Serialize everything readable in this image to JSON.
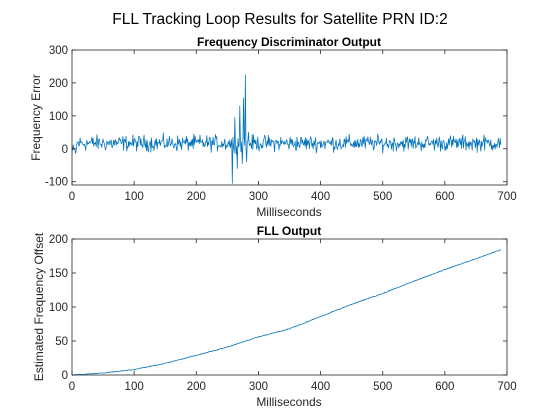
{
  "figure_title": "FLL Tracking Loop Results for Satellite PRN ID:2",
  "colors": {
    "series": "#0072bd",
    "axes": "#262626"
  },
  "chart_data": [
    {
      "type": "line",
      "title": "Frequency Discriminator Output",
      "xlabel": "Milliseconds",
      "ylabel": "Frequency Error",
      "xlim": [
        0,
        700
      ],
      "ylim": [
        -110,
        300
      ],
      "xticks": [
        "0",
        "100",
        "200",
        "300",
        "400",
        "500",
        "600",
        "700"
      ],
      "yticks": [
        "-100",
        "0",
        "100",
        "200",
        "300"
      ],
      "grid": false,
      "series": [
        {
          "samples": 690,
          "x_range": [
            1,
            690
          ],
          "description_values": {
            "baseline_mean": 17,
            "noise_amplitude": 35,
            "spikes": [
              {
                "x": 258,
                "y": -105
              },
              {
                "x": 262,
                "y": 95
              },
              {
                "x": 266,
                "y": -60
              },
              {
                "x": 270,
                "y": 130
              },
              {
                "x": 274,
                "y": -45
              },
              {
                "x": 276,
                "y": 155
              },
              {
                "x": 279,
                "y": 225
              },
              {
                "x": 281,
                "y": -40
              },
              {
                "x": 284,
                "y": 50
              }
            ]
          }
        }
      ]
    },
    {
      "type": "line",
      "title": "FLL Output",
      "xlabel": "Milliseconds",
      "ylabel": "Estimated Frequency Offset",
      "xlim": [
        0,
        700
      ],
      "ylim": [
        0,
        200
      ],
      "xticks": [
        "0",
        "100",
        "200",
        "300",
        "400",
        "500",
        "600",
        "700"
      ],
      "yticks": [
        "0",
        "50",
        "100",
        "150",
        "200"
      ],
      "grid": false,
      "series": [
        {
          "x": [
            0,
            50,
            100,
            150,
            200,
            250,
            300,
            350,
            400,
            450,
            500,
            550,
            600,
            650,
            690
          ],
          "y": [
            0,
            3,
            8,
            17,
            29,
            41,
            56,
            68,
            86,
            104,
            120,
            138,
            155,
            171,
            184
          ]
        }
      ]
    }
  ]
}
